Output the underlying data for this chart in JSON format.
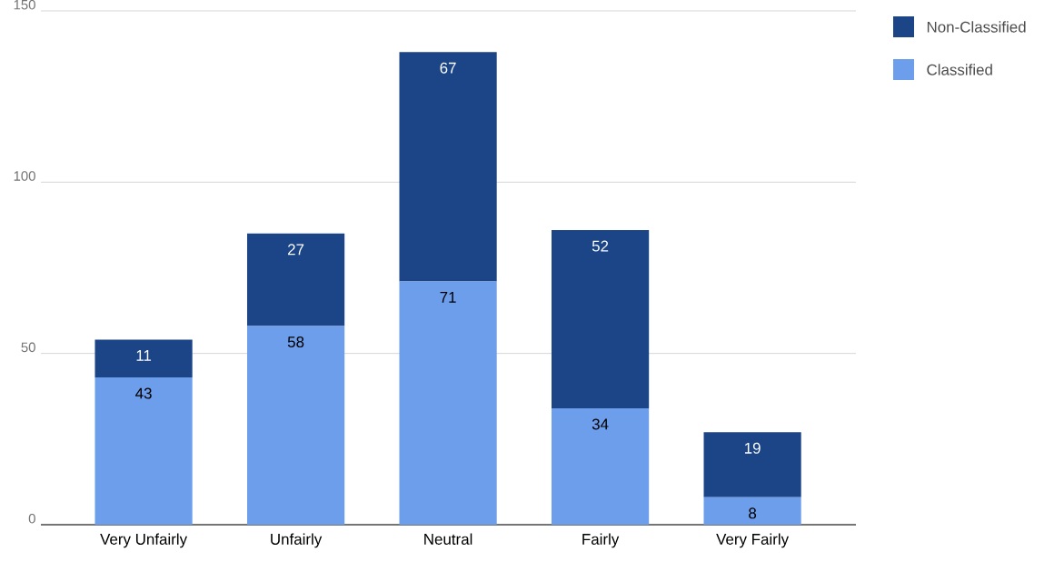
{
  "chart_data": {
    "type": "bar",
    "stacked": true,
    "categories": [
      "Very Unfairly",
      "Unfairly",
      "Neutral",
      "Fairly",
      "Very Fairly"
    ],
    "series": [
      {
        "name": "Classified",
        "color": "#6d9eeb",
        "values": [
          43,
          58,
          71,
          34,
          8
        ]
      },
      {
        "name": "Non-Classified",
        "color": "#1c4587",
        "values": [
          11,
          27,
          67,
          52,
          19
        ]
      }
    ],
    "ylim": [
      0,
      150
    ],
    "yticks": [
      0,
      50,
      100,
      150
    ],
    "grid": "y",
    "legend": "top right",
    "data_labels": true
  }
}
